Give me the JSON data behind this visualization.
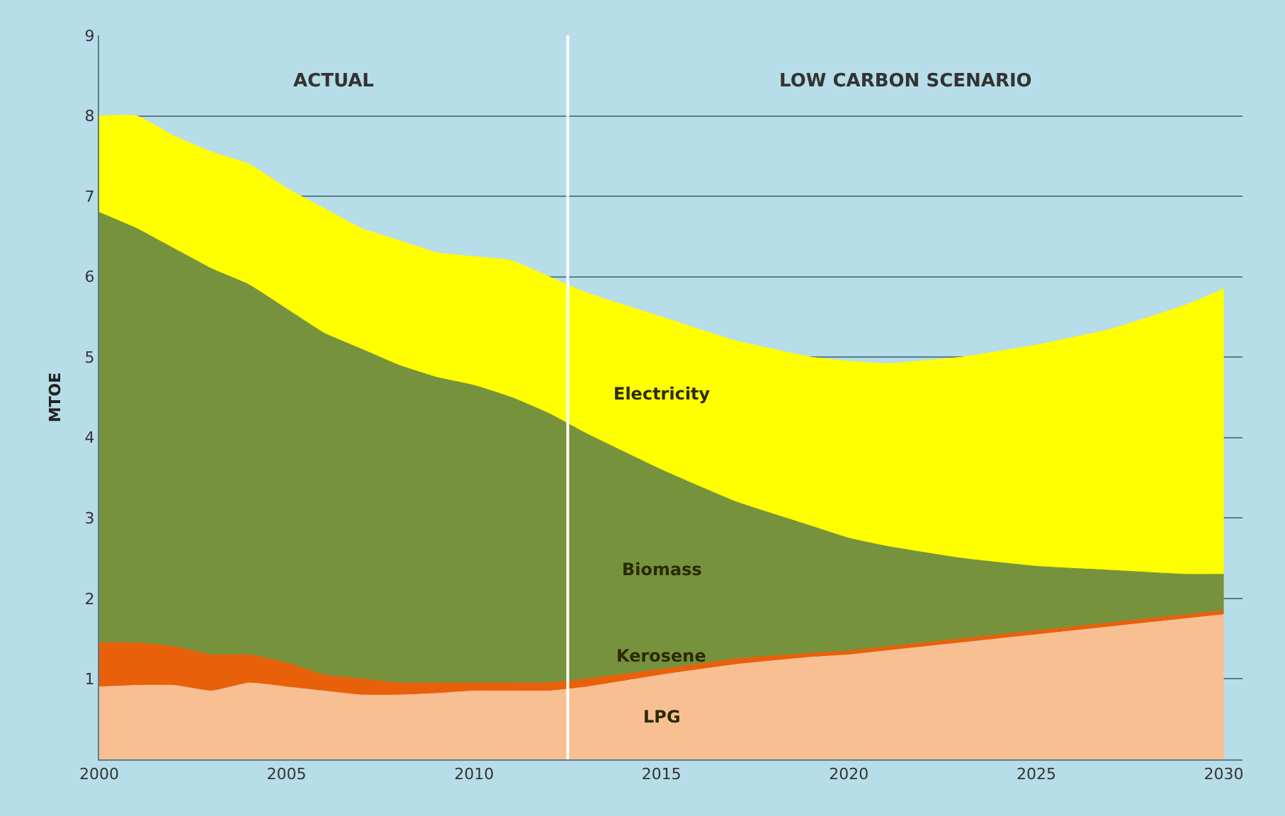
{
  "chart_data": {
    "type": "area",
    "stacked": true,
    "ylabel": "MTOE",
    "x": [
      2000,
      2001,
      2002,
      2003,
      2004,
      2005,
      2006,
      2007,
      2008,
      2009,
      2010,
      2011,
      2012,
      2013,
      2015,
      2017,
      2019,
      2020,
      2021,
      2023,
      2025,
      2027,
      2029,
      2030
    ],
    "series": [
      {
        "name": "LPG",
        "color": "#f8bf93",
        "values": [
          0.9,
          0.92,
          0.92,
          0.85,
          0.95,
          0.9,
          0.85,
          0.8,
          0.8,
          0.82,
          0.85,
          0.85,
          0.85,
          0.9,
          1.05,
          1.18,
          1.27,
          1.3,
          1.35,
          1.45,
          1.55,
          1.65,
          1.75,
          1.8
        ]
      },
      {
        "name": "Kerosene",
        "color": "#e8600a",
        "values": [
          0.55,
          0.53,
          0.48,
          0.45,
          0.35,
          0.3,
          0.2,
          0.2,
          0.15,
          0.13,
          0.1,
          0.1,
          0.1,
          0.1,
          0.07,
          0.07,
          0.05,
          0.05,
          0.05,
          0.05,
          0.05,
          0.05,
          0.05,
          0.05
        ]
      },
      {
        "name": "Biomass",
        "color": "#76923c",
        "values": [
          5.35,
          5.15,
          4.95,
          4.8,
          4.6,
          4.4,
          4.25,
          4.1,
          3.95,
          3.8,
          3.7,
          3.55,
          3.35,
          3.05,
          2.48,
          1.95,
          1.58,
          1.4,
          1.25,
          1.0,
          0.8,
          0.65,
          0.5,
          0.45
        ]
      },
      {
        "name": "Electricity",
        "color": "#ffff00",
        "values": [
          1.2,
          1.4,
          1.4,
          1.45,
          1.5,
          1.5,
          1.55,
          1.5,
          1.55,
          1.55,
          1.6,
          1.7,
          1.7,
          1.75,
          1.9,
          2.0,
          2.1,
          2.2,
          2.27,
          2.5,
          2.75,
          3.0,
          3.35,
          3.55
        ]
      }
    ],
    "xlim": [
      2000,
      2030.5
    ],
    "xticks": [
      2000,
      2005,
      2010,
      2015,
      2020,
      2025,
      2030
    ],
    "ylim": [
      0,
      9
    ],
    "yticks": [
      1,
      2,
      3,
      4,
      5,
      6,
      7,
      8,
      9
    ],
    "grid": "y",
    "legend": false,
    "ref_lines": [
      {
        "axis": "x",
        "value": 2012.5,
        "color": "#ffffff"
      }
    ],
    "annotations": [
      "ACTUAL",
      "LOW CARBON SCENARIO"
    ]
  }
}
